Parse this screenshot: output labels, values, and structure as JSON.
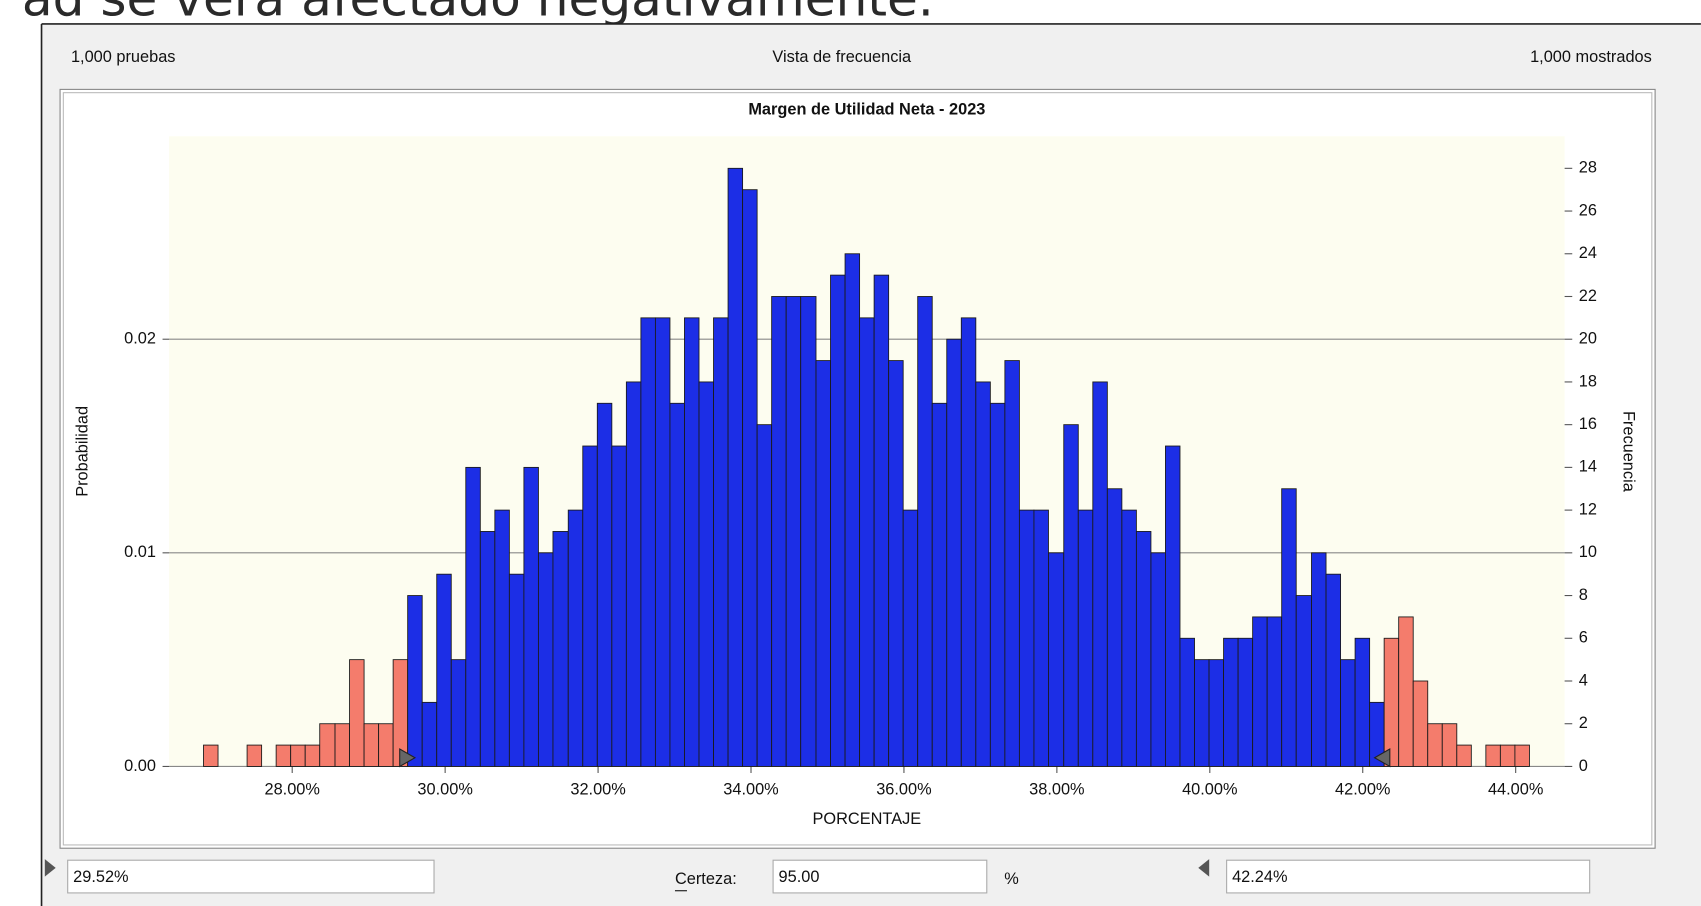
{
  "slide_text": "ad se verá afectado negativamente.",
  "header": {
    "trials": "1,000 pruebas",
    "view": "Vista de frecuencia",
    "shown": "1,000 mostrados"
  },
  "chart_data": {
    "type": "histogram",
    "title": "Margen de Utilidad Neta  - 2023",
    "x_label": "PORCENTAJE",
    "y_label": "Probabilidad",
    "y2_label": "Frecuencia",
    "bins": [
      26.84,
      27.03,
      27.22,
      27.41,
      27.6,
      27.79,
      27.98,
      28.17,
      28.36,
      28.56,
      28.75,
      28.94,
      29.13,
      29.32,
      29.51,
      29.7,
      29.89,
      30.08,
      30.27,
      30.46,
      30.65,
      30.84,
      31.03,
      31.22,
      31.41,
      31.61,
      31.8,
      31.99,
      32.18,
      32.37,
      32.56,
      32.75,
      32.94,
      33.13,
      33.32,
      33.51,
      33.7,
      33.89,
      34.08,
      34.27,
      34.46,
      34.65,
      34.85,
      35.04,
      35.23,
      35.42,
      35.61,
      35.8,
      35.99,
      36.18,
      36.37,
      36.56,
      36.75,
      36.94,
      37.13,
      37.32,
      37.51,
      37.7,
      37.89,
      38.09,
      38.28,
      38.47,
      38.66,
      38.85,
      39.04,
      39.23,
      39.42,
      39.61,
      39.8,
      39.99,
      40.18,
      40.37,
      40.56,
      40.75,
      40.94,
      41.13,
      41.33,
      41.52,
      41.71,
      41.9,
      42.09,
      42.28,
      42.47,
      42.66,
      42.85,
      43.04,
      43.23,
      43.42,
      43.61,
      43.8,
      43.99,
      44.18
    ],
    "series": [
      {
        "name": "Frecuencia",
        "axis": "y2",
        "color": "#1c2ee6",
        "tail_color": "#f47c6c",
        "values": [
          1,
          0,
          0,
          1,
          0,
          1,
          1,
          1,
          2,
          2,
          5,
          2,
          2,
          5,
          8,
          3,
          9,
          5,
          14,
          11,
          12,
          9,
          14,
          10,
          11,
          12,
          15,
          17,
          15,
          18,
          21,
          21,
          17,
          21,
          18,
          21,
          28,
          27,
          16,
          22,
          22,
          22,
          19,
          23,
          24,
          21,
          23,
          19,
          12,
          22,
          17,
          20,
          21,
          18,
          17,
          19,
          12,
          12,
          10,
          16,
          12,
          18,
          13,
          12,
          11,
          10,
          15,
          6,
          5,
          5,
          6,
          6,
          7,
          7,
          13,
          8,
          10,
          9,
          5,
          6,
          3,
          6,
          7,
          4,
          2,
          2,
          1,
          0,
          1,
          1,
          1
        ]
      }
    ],
    "xlim": [
      26.39,
      44.64
    ],
    "xticks": [
      {
        "value": 28,
        "label": "28.00%"
      },
      {
        "value": 30,
        "label": "30.00%"
      },
      {
        "value": 32,
        "label": "32.00%"
      },
      {
        "value": 34,
        "label": "34.00%"
      },
      {
        "value": 36,
        "label": "36.00%"
      },
      {
        "value": 38,
        "label": "38.00%"
      },
      {
        "value": 40,
        "label": "40.00%"
      },
      {
        "value": 42,
        "label": "42.00%"
      },
      {
        "value": 44,
        "label": "44.00%"
      }
    ],
    "ylim": [
      0,
      0.0295
    ],
    "yticks": [
      {
        "value": 0,
        "label": "0.00"
      },
      {
        "value": 0.01,
        "label": "0.01"
      },
      {
        "value": 0.02,
        "label": "0.02"
      }
    ],
    "y2lim": [
      0,
      29.5
    ],
    "y2ticks": [
      0,
      2,
      4,
      6,
      8,
      10,
      12,
      14,
      16,
      18,
      20,
      22,
      24,
      26,
      28
    ],
    "grid": true,
    "lower": {
      "value": 29.52,
      "label": "29.52%"
    },
    "upper": {
      "value": 42.24,
      "label": "42.24%"
    },
    "certainty_label": "Certeza:",
    "certainty": {
      "value": 95,
      "label": "95.00"
    },
    "certainty_unit": "%"
  }
}
